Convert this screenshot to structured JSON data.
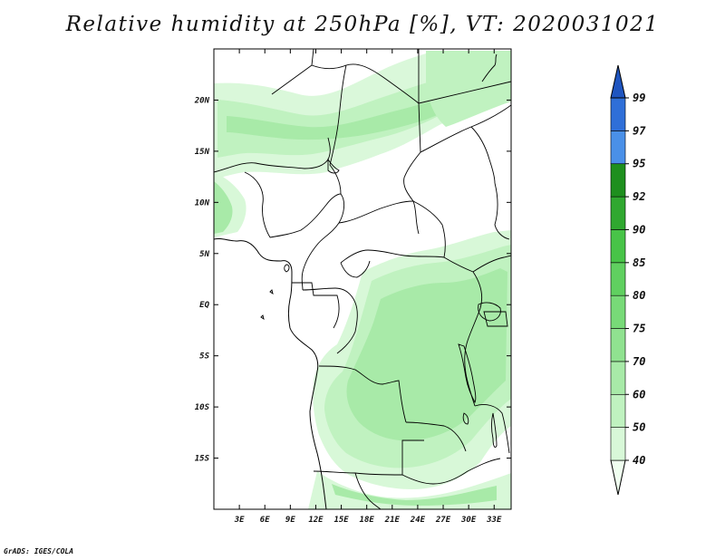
{
  "title": "Relative humidity at 250hPa [%], VT: 2020031021",
  "credit": "GrADS: IGES/COLA",
  "map": {
    "lon_range": [
      0,
      35
    ],
    "lat_range": [
      -20,
      25
    ],
    "lon_ticks": [
      "3E",
      "6E",
      "9E",
      "12E",
      "15E",
      "18E",
      "21E",
      "24E",
      "27E",
      "30E",
      "33E"
    ],
    "lat_ticks": [
      "20N",
      "15N",
      "10N",
      "5N",
      "EQ",
      "5S",
      "10S",
      "15S"
    ]
  },
  "colorbar": {
    "levels": [
      "40",
      "50",
      "60",
      "70",
      "75",
      "80",
      "85",
      "90",
      "92",
      "95",
      "97",
      "99"
    ],
    "colors": [
      "#f0fff0",
      "#d8f8d8",
      "#c0f2c0",
      "#a8eaa8",
      "#90e290",
      "#78da78",
      "#60d060",
      "#48c448",
      "#30a830",
      "#1e8f1e",
      "#4a90e8",
      "#2f6fd8",
      "#1f55c0"
    ]
  }
}
